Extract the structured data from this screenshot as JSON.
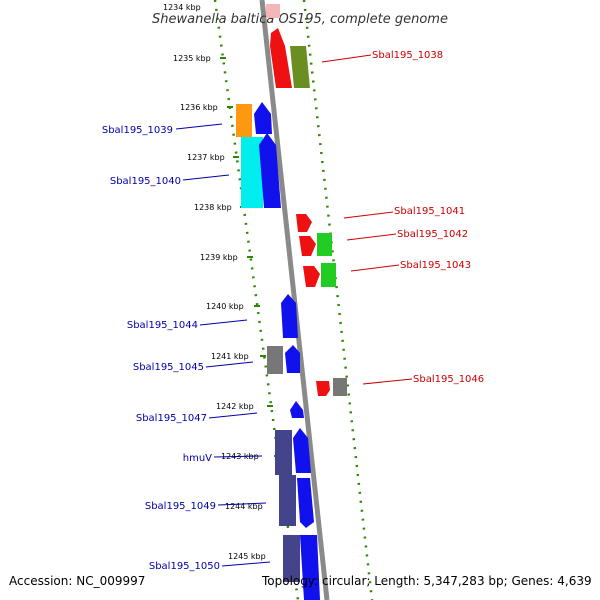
{
  "title": "Shewanella baltica OS195, complete genome",
  "footer": {
    "accession": "Accession: NC_009997",
    "topology": "Topology: circular; Length: 5,347,283 bp; Genes: 4,639"
  },
  "ruler_labels": [
    "1234 kbp",
    "1235 kbp",
    "1236 kbp",
    "1237 kbp",
    "1238 kbp",
    "1239 kbp",
    "1240 kbp",
    "1241 kbp",
    "1242 kbp",
    "1243 kbp",
    "1244 kbp",
    "1245 kbp"
  ],
  "gene_labels": {
    "forward": [
      "Sbal195_1038",
      "Sbal195_1041",
      "Sbal195_1042",
      "Sbal195_1043",
      "Sbal195_1046"
    ],
    "reverse": [
      "Sbal195_1039",
      "Sbal195_1040",
      "Sbal195_1044",
      "Sbal195_1045",
      "Sbal195_1047",
      "hmuV",
      "Sbal195_1049",
      "Sbal195_1050"
    ]
  },
  "colors": {
    "forward_label": "#cc0000",
    "reverse_label": "#0000aa",
    "backbone": "#8a8a8a",
    "dots": "#2a8a00",
    "red": "#ee1111",
    "blue": "#1111ee",
    "olive": "#6b8e23",
    "orange": "#ff9911",
    "cyan": "#00eeee",
    "green": "#22cc22",
    "gray": "#777777",
    "slate": "#44448a"
  }
}
